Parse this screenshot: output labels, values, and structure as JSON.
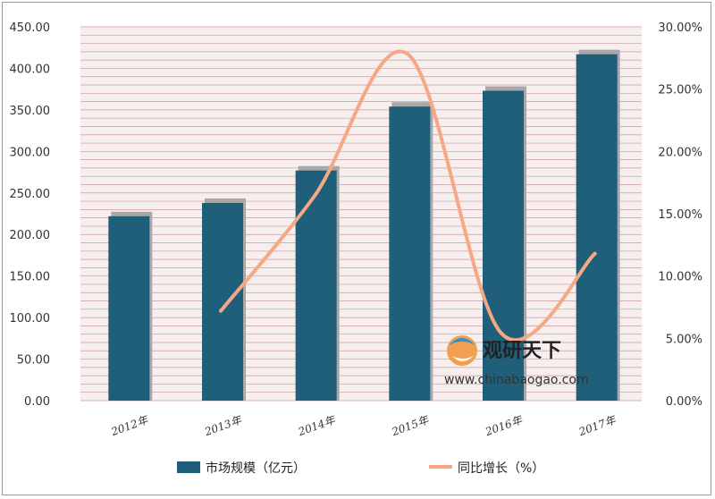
{
  "chart_data": {
    "type": "bar",
    "categories": [
      "2012年",
      "2013年",
      "2014年",
      "2015年",
      "2016年",
      "2017年"
    ],
    "series": [
      {
        "name": "市场规模（亿元）",
        "type": "bar",
        "axis": "left",
        "values": [
          222,
          238,
          277,
          354,
          373,
          417
        ]
      },
      {
        "name": "同比增长（%）",
        "type": "line",
        "axis": "right",
        "values": [
          null,
          7.2,
          16.4,
          27.8,
          5.4,
          11.8
        ]
      }
    ],
    "y_left": {
      "min": 0,
      "max": 450,
      "step": 50,
      "ticks": [
        "0.00",
        "50.00",
        "100.00",
        "150.00",
        "200.00",
        "250.00",
        "300.00",
        "350.00",
        "400.00",
        "450.00"
      ]
    },
    "y_right": {
      "min": 0,
      "max": 30,
      "step": 5,
      "ticks": [
        "0.00%",
        "5.00%",
        "10.00%",
        "15.00%",
        "20.00%",
        "25.00%",
        "30.00%"
      ]
    },
    "grid": true,
    "legend_position": "bottom",
    "colors": {
      "bar": "#1f5f7a",
      "bar_shadow": "#a8a8a8",
      "line": "#f4a984",
      "plot_bg": "#f7eeee",
      "grid": "#c99aa6"
    }
  },
  "watermark": {
    "brand": "观研天下",
    "url": "www.chinabaogao.com"
  }
}
